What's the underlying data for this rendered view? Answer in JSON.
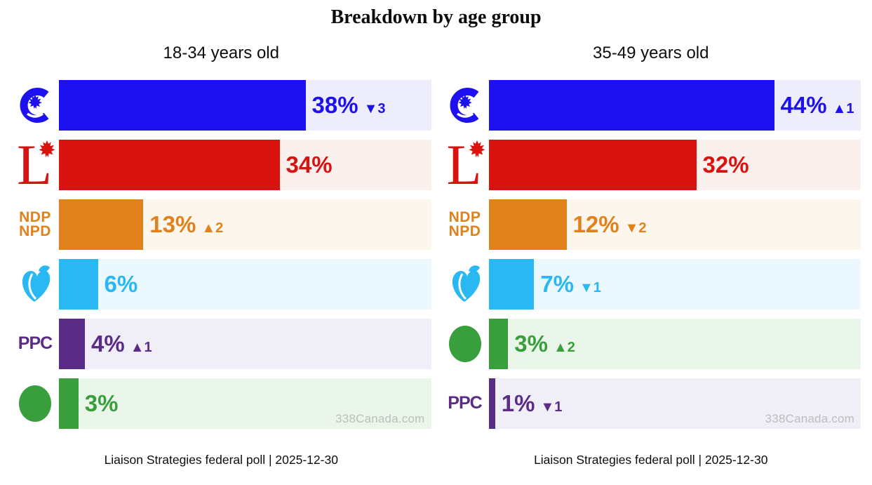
{
  "title": "Breakdown by age group",
  "watermark": "338Canada.com",
  "footer": "Liaison Strategies federal poll | 2025-12-30",
  "logo_text": {
    "ndp": [
      "NDP",
      "NPD"
    ],
    "ppc": "PPC",
    "liberal": "L"
  },
  "chart_data": {
    "type": "bar",
    "orientation": "horizontal",
    "title": "Breakdown by age group",
    "source": "Liaison Strategies federal poll | 2025-12-30",
    "xlim": [
      0,
      57.8
    ],
    "panels": [
      {
        "subtitle": "18-34 years old",
        "rows": [
          {
            "party": "Conservative",
            "logo": "conservative-party-logo",
            "value": 38,
            "label": "38%",
            "change": -3,
            "change_label": "▼3",
            "color": "#1d12ef",
            "track_color": "#ededfb"
          },
          {
            "party": "Liberal",
            "logo": "liberal-party-logo",
            "value": 34,
            "label": "34%",
            "change": 0,
            "change_label": "",
            "color": "#d81310",
            "track_color": "#faf0ee"
          },
          {
            "party": "NDP",
            "logo": "ndp-party-logo",
            "value": 13,
            "label": "13%",
            "change": 2,
            "change_label": "▲2",
            "color": "#e0811c",
            "track_color": "#fdf6ed"
          },
          {
            "party": "Bloc Québécois",
            "logo": "bloc-quebecois-party-logo",
            "value": 6,
            "label": "6%",
            "change": 0,
            "change_label": "",
            "color": "#29b8f3",
            "track_color": "#ebf8fe"
          },
          {
            "party": "PPC",
            "logo": "ppc-party-logo",
            "value": 4,
            "label": "4%",
            "change": 1,
            "change_label": "▲1",
            "color": "#5b2c87",
            "track_color": "#f0eef7"
          },
          {
            "party": "Green",
            "logo": "green-party-logo",
            "value": 3,
            "label": "3%",
            "change": 0,
            "change_label": "",
            "color": "#399f3d",
            "track_color": "#ebf6eb"
          }
        ]
      },
      {
        "subtitle": "35-49 years old",
        "rows": [
          {
            "party": "Conservative",
            "logo": "conservative-party-logo",
            "value": 44,
            "label": "44%",
            "change": 1,
            "change_label": "▲1",
            "color": "#1d12ef",
            "track_color": "#ededfb"
          },
          {
            "party": "Liberal",
            "logo": "liberal-party-logo",
            "value": 32,
            "label": "32%",
            "change": 0,
            "change_label": "",
            "color": "#d81310",
            "track_color": "#faf0ee"
          },
          {
            "party": "NDP",
            "logo": "ndp-party-logo",
            "value": 12,
            "label": "12%",
            "change": -2,
            "change_label": "▼2",
            "color": "#e0811c",
            "track_color": "#fdf6ed"
          },
          {
            "party": "Bloc Québécois",
            "logo": "bloc-quebecois-party-logo",
            "value": 7,
            "label": "7%",
            "change": -1,
            "change_label": "▼1",
            "color": "#29b8f3",
            "track_color": "#ebf8fe"
          },
          {
            "party": "Green",
            "logo": "green-party-logo",
            "value": 3,
            "label": "3%",
            "change": 2,
            "change_label": "▲2",
            "color": "#399f3d",
            "track_color": "#ebf6eb"
          },
          {
            "party": "PPC",
            "logo": "ppc-party-logo",
            "value": 1,
            "label": "1%",
            "change": -1,
            "change_label": "▼1",
            "color": "#5b2c87",
            "track_color": "#f0eef7"
          }
        ]
      }
    ]
  }
}
